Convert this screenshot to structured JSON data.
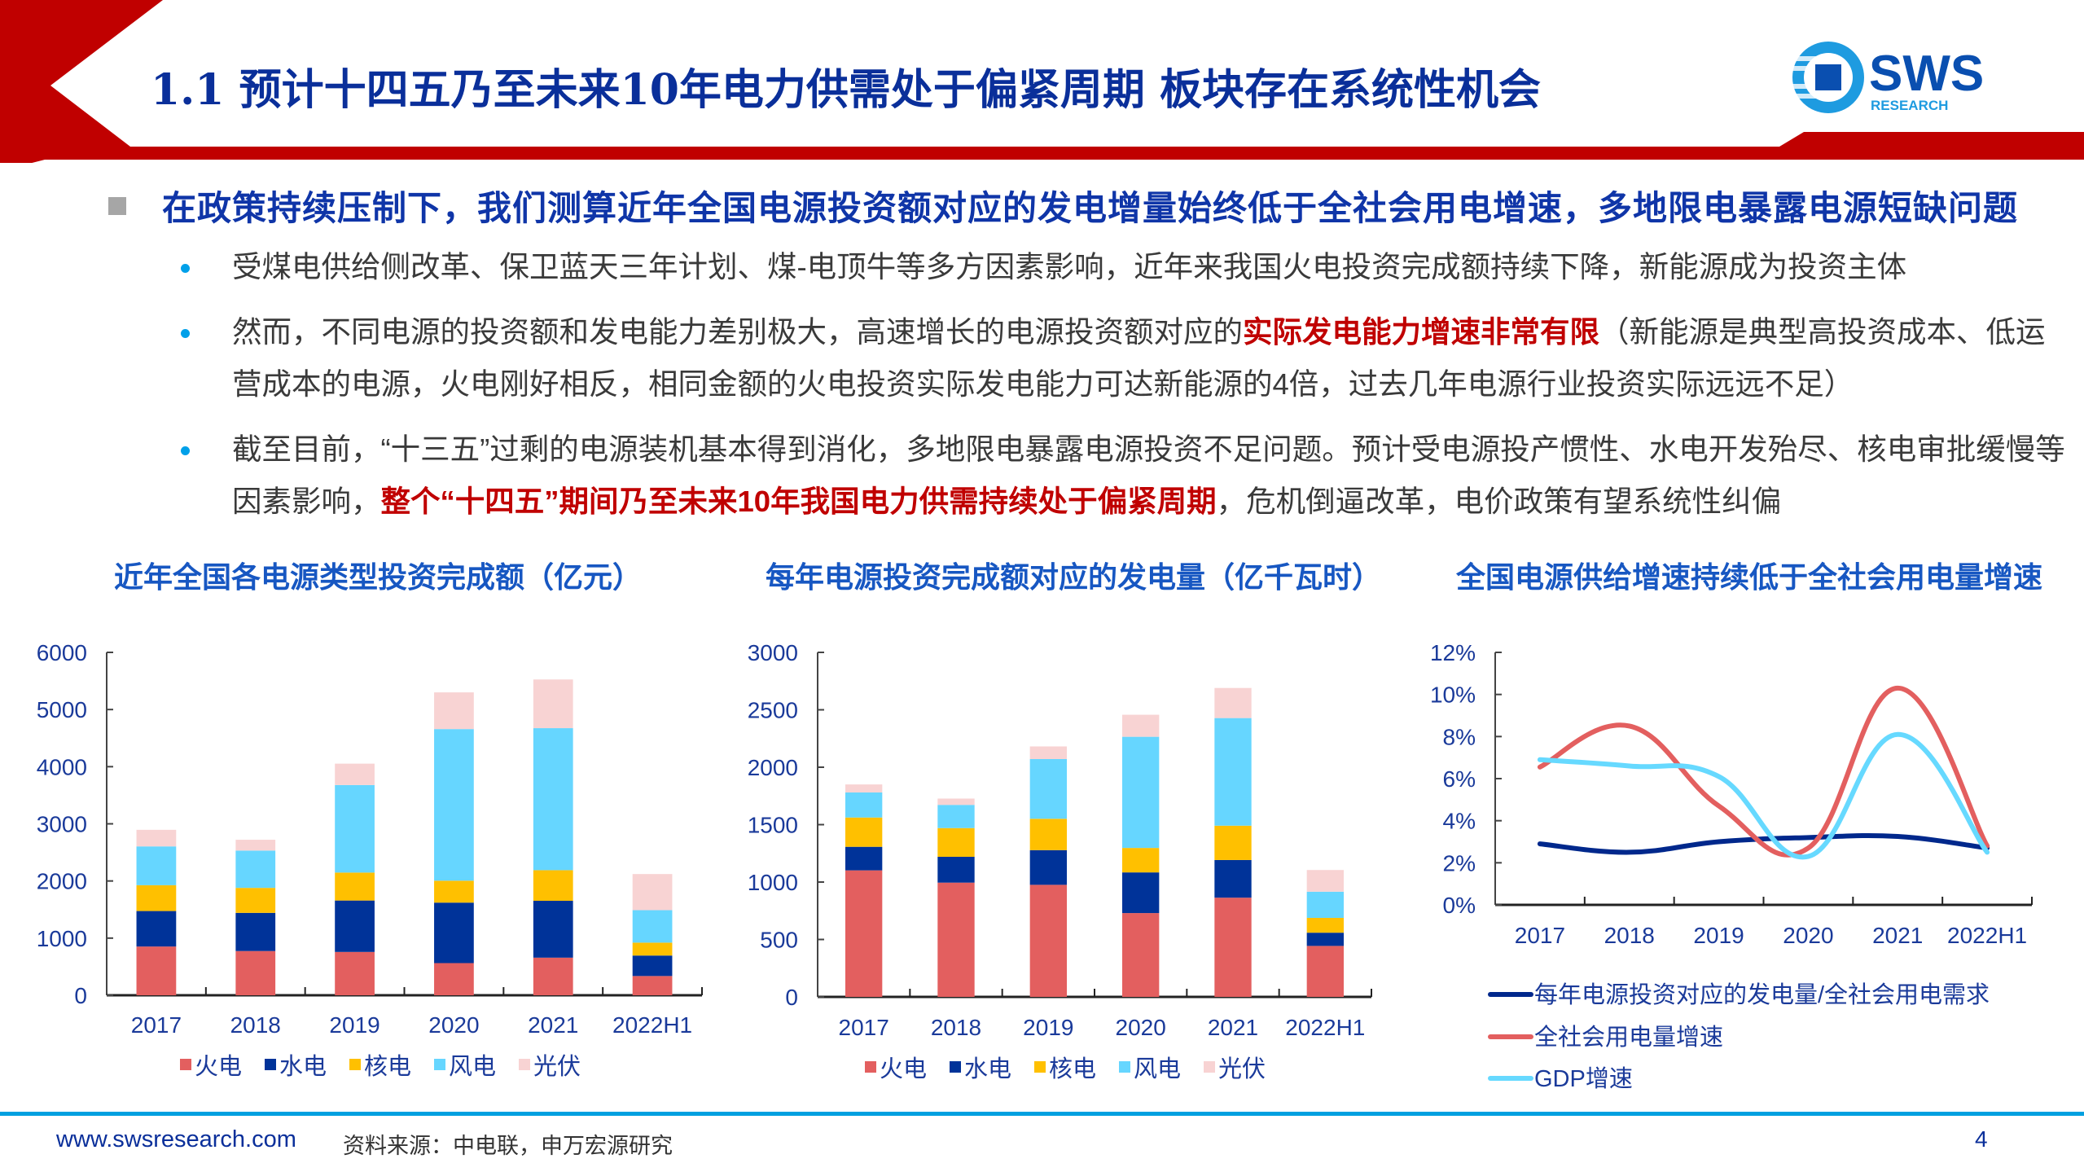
{
  "header": {
    "title": "1.1 预计十四五乃至未来10年电力供需处于偏紧周期 板块存在系统性机会"
  },
  "logo": {
    "text": "SWS",
    "sub": "RESEARCH"
  },
  "headline": "在政策持续压制下，我们测算近年全国电源投资额对应的发电增量始终低于全社会用电增速，多地限电暴露电源短缺问题",
  "bullets": [
    {
      "segments": [
        {
          "text": "受煤电供给侧改革、保卫蓝天三年计划、煤-电顶牛等多方因素影响，近年来我国火电投资完成额持续下降，新能源成为投资主体",
          "highlight": false
        }
      ]
    },
    {
      "segments": [
        {
          "text": "然而，不同电源的投资额和发电能力差别极大，高速增长的电源投资额对应的",
          "highlight": false
        },
        {
          "text": "实际发电能力增速非常有限",
          "highlight": true
        },
        {
          "text": "（新能源是典型高投资成本、低运营成本的电源，火电刚好相反，相同金额的火电投资实际发电能力可达新能源的4倍，过去几年电源行业投资实际远远不足）",
          "highlight": false
        }
      ]
    },
    {
      "segments": [
        {
          "text": "截至目前，“十三五”过剩的电源装机基本得到消化，多地限电暴露电源投资不足问题。预计受电源投产惯性、水电开发殆尽、核电审批缓慢等因素影响，",
          "highlight": false
        },
        {
          "text": "整个“十四五”期间乃至未来10年我国电力供需持续处于偏紧周期",
          "highlight": true
        },
        {
          "text": "，危机倒逼改革，电价政策有望系统性纠偏",
          "highlight": false
        }
      ]
    }
  ],
  "colors": {
    "fire": "#e35f5f",
    "hydro": "#003399",
    "nuclear": "#ffc000",
    "wind": "#66d6ff",
    "solar": "#f8d3d3",
    "accent_red": "#c00000",
    "title_blue": "#0a2f9a"
  },
  "chart_data": [
    {
      "type": "bar",
      "stacked": true,
      "title": "近年全国各电源类型投资完成额（亿元）",
      "categories": [
        "2017",
        "2018",
        "2019",
        "2020",
        "2021",
        "2022H1"
      ],
      "ylim": [
        0,
        6000
      ],
      "yticks": [
        0,
        1000,
        2000,
        3000,
        4000,
        5000,
        6000
      ],
      "legend": "bottom",
      "series": [
        {
          "name": "火电",
          "color": "#e35f5f",
          "values": [
            853,
            774,
            758,
            563,
            658,
            337
          ]
        },
        {
          "name": "水电",
          "color": "#003399",
          "values": [
            621,
            668,
            900,
            1058,
            995,
            358
          ]
        },
        {
          "name": "核电",
          "color": "#ffc000",
          "values": [
            452,
            437,
            489,
            384,
            536,
            226
          ]
        },
        {
          "name": "风电",
          "color": "#66d6ff",
          "values": [
            679,
            653,
            1532,
            2653,
            2485,
            568
          ]
        },
        {
          "name": "光伏",
          "color": "#f8d3d3",
          "values": [
            290,
            189,
            374,
            642,
            852,
            632
          ]
        }
      ]
    },
    {
      "type": "bar",
      "stacked": true,
      "title": "每年电源投资完成额对应的发电量（亿千瓦时）",
      "categories": [
        "2017",
        "2018",
        "2019",
        "2020",
        "2021",
        "2022H1"
      ],
      "ylim": [
        0,
        3000
      ],
      "yticks": [
        0,
        500,
        1000,
        1500,
        2000,
        2500,
        3000
      ],
      "legend": "bottom",
      "series": [
        {
          "name": "火电",
          "color": "#e35f5f",
          "values": [
            1102,
            995,
            976,
            730,
            864,
            444
          ]
        },
        {
          "name": "水电",
          "color": "#003399",
          "values": [
            205,
            225,
            302,
            354,
            328,
            115
          ]
        },
        {
          "name": "核电",
          "color": "#ffc000",
          "values": [
            255,
            250,
            273,
            213,
            299,
            129
          ]
        },
        {
          "name": "风电",
          "color": "#66d6ff",
          "values": [
            218,
            202,
            520,
            968,
            937,
            228
          ]
        },
        {
          "name": "光伏",
          "color": "#f8d3d3",
          "values": [
            70,
            55,
            110,
            192,
            262,
            189
          ]
        }
      ]
    },
    {
      "type": "line",
      "smooth": true,
      "title": "全国电源供给增速持续低于全社会用电量增速",
      "categories": [
        "2017",
        "2018",
        "2019",
        "2020",
        "2021",
        "2022H1"
      ],
      "ylim": [
        0,
        12
      ],
      "yticks": [
        0,
        2,
        4,
        6,
        8,
        10,
        12
      ],
      "ytick_labels": [
        "0%",
        "2%",
        "4%",
        "6%",
        "8%",
        "10%",
        "12%"
      ],
      "unit": "%",
      "legend": "bottom",
      "series": [
        {
          "name": "每年电源投资对应的发电量/全社会用电需求",
          "color": "#00288c",
          "values": [
            2.9,
            2.5,
            3.0,
            3.2,
            3.25,
            2.7
          ]
        },
        {
          "name": "全社会用电量增速",
          "color": "#e35f5f",
          "values": [
            6.55,
            8.5,
            4.7,
            2.7,
            10.3,
            2.8
          ]
        },
        {
          "name": "GDP增速",
          "color": "#66d9ff",
          "values": [
            6.9,
            6.6,
            6.1,
            2.3,
            8.1,
            2.5
          ]
        }
      ]
    }
  ],
  "footer": {
    "website": "www.swsresearch.com",
    "source": "资料来源：中电联，申万宏源研究",
    "page": "4"
  }
}
